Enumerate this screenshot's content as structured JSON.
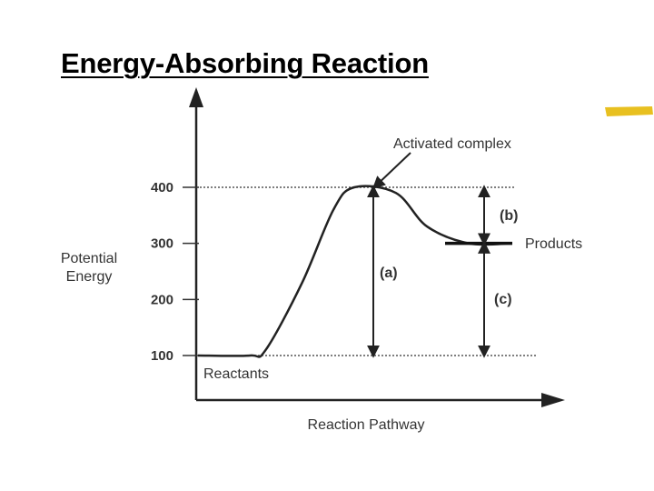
{
  "title": "Energy-Absorbing Reaction",
  "accent_colors": {
    "highlighter": "#e8c020",
    "line": "#222222"
  },
  "chart_data": {
    "type": "line",
    "ylabel": "Potential\nEnergy",
    "xlabel": "Reaction Pathway",
    "ylim": [
      100,
      400
    ],
    "y_ticks": [
      100,
      200,
      300,
      400
    ],
    "grid": "dotted reference lines at 100 and 400",
    "series": [
      {
        "x": [
          0,
          1.0,
          1.3,
          2.0,
          2.6,
          3.0,
          3.8,
          4.4,
          5.2,
          6.0
        ],
        "values": [
          100,
          100,
          110,
          230,
          360,
          400,
          390,
          330,
          300,
          300
        ]
      }
    ],
    "labels": {
      "reactants": "Reactants",
      "products": "Products",
      "activated_complex": "Activated complex",
      "a": "(a)",
      "b": "(b)",
      "c": "(c)"
    },
    "energy_levels": {
      "reactants": 100,
      "activated_complex": 400,
      "products": 300
    }
  }
}
